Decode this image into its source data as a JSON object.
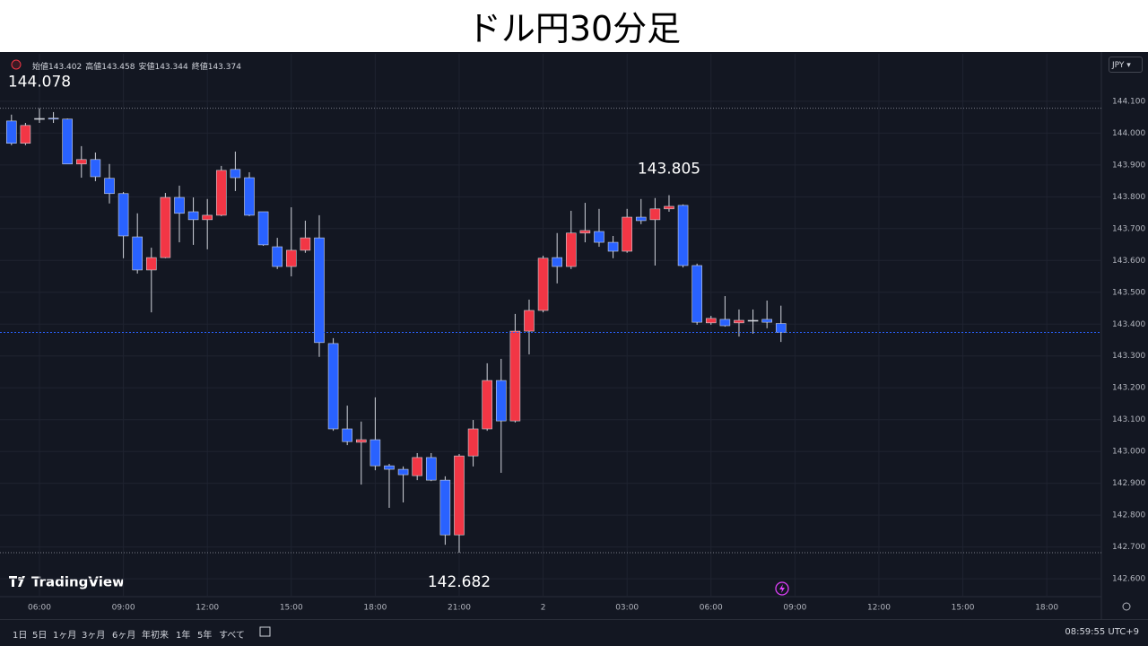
{
  "chart_data": {
    "type": "candlestick",
    "title": "ドル円30分足",
    "x": [
      5,
      5.5,
      6,
      6.5,
      7,
      7.5,
      8,
      8.5,
      9,
      9.5,
      10,
      10.5,
      11,
      11.5,
      12,
      12.5,
      13,
      13.5,
      14,
      14.5,
      15,
      15.5,
      16,
      16.5,
      17,
      17.5,
      18,
      18.5,
      19,
      19.5,
      20,
      20.5,
      21,
      21.5,
      22,
      22.5,
      23,
      23.5,
      24,
      24.5,
      25,
      25.5,
      26,
      26.5,
      27,
      27.5,
      28,
      28.5,
      29,
      29.5,
      30,
      30.5,
      31,
      31.5,
      32,
      32.5
    ],
    "open": [
      144.038,
      143.968,
      144.046,
      144.047,
      144.044,
      143.903,
      143.917,
      143.858,
      143.81,
      143.674,
      143.57,
      143.609,
      143.798,
      143.753,
      143.728,
      143.742,
      143.886,
      143.86,
      143.753,
      143.643,
      143.581,
      143.632,
      143.671,
      143.339,
      143.071,
      143.029,
      143.037,
      142.955,
      142.944,
      142.924,
      142.981,
      142.91,
      142.738,
      142.986,
      143.071,
      143.223,
      143.096,
      143.378,
      143.443,
      143.609,
      143.581,
      143.686,
      143.691,
      143.657,
      143.629,
      143.736,
      143.728,
      143.762,
      143.773,
      143.584,
      143.404,
      143.415,
      143.404,
      143.412,
      143.415,
      143.402
    ],
    "high": [
      144.058,
      144.032,
      144.078,
      144.066,
      144.046,
      143.959,
      143.939,
      143.903,
      143.815,
      143.748,
      143.64,
      143.812,
      143.835,
      143.798,
      143.793,
      143.897,
      143.942,
      143.877,
      143.753,
      143.671,
      143.767,
      143.725,
      143.742,
      143.356,
      143.144,
      143.094,
      143.17,
      142.961,
      142.953,
      142.995,
      142.995,
      142.922,
      142.992,
      143.099,
      143.277,
      143.291,
      143.432,
      143.477,
      143.615,
      143.686,
      143.756,
      143.781,
      143.762,
      143.677,
      143.762,
      143.793,
      143.796,
      143.805,
      143.776,
      143.59,
      143.426,
      143.488,
      143.446,
      143.446,
      143.474,
      143.458
    ],
    "low": [
      143.962,
      143.962,
      144.032,
      144.032,
      143.903,
      143.86,
      143.849,
      143.779,
      143.607,
      143.559,
      143.437,
      143.607,
      143.657,
      143.649,
      143.635,
      143.739,
      143.818,
      143.739,
      143.646,
      143.573,
      143.55,
      143.624,
      143.297,
      143.065,
      143.02,
      142.896,
      142.941,
      142.823,
      142.84,
      142.91,
      142.907,
      142.707,
      142.682,
      142.953,
      143.065,
      142.933,
      143.091,
      143.305,
      143.437,
      143.528,
      143.573,
      143.657,
      143.643,
      143.607,
      143.624,
      143.714,
      143.584,
      143.753,
      143.578,
      143.398,
      143.398,
      143.392,
      143.361,
      143.37,
      143.387,
      143.344
    ],
    "close": [
      143.968,
      144.024,
      144.046,
      144.044,
      143.903,
      143.917,
      143.863,
      143.81,
      143.677,
      143.57,
      143.609,
      143.798,
      143.748,
      143.728,
      143.742,
      143.883,
      143.86,
      143.742,
      143.649,
      143.581,
      143.632,
      143.671,
      143.342,
      143.071,
      143.031,
      143.037,
      142.955,
      142.944,
      142.927,
      142.981,
      142.91,
      142.738,
      142.986,
      143.071,
      143.223,
      143.096,
      143.378,
      143.443,
      143.607,
      143.581,
      143.686,
      143.694,
      143.657,
      143.629,
      143.736,
      143.725,
      143.762,
      143.77,
      143.584,
      143.406,
      143.418,
      143.395,
      143.412,
      143.412,
      143.406,
      143.374
    ],
    "up_color": "#f23645",
    "down_color": "#2962ff",
    "neutral_color": "#d1d4dc",
    "xlim": [
      4.59,
      43.95
    ],
    "ylim": [
      144.249,
      142.544
    ],
    "xticks": [
      {
        "value": 6,
        "label": "06:00"
      },
      {
        "value": 9,
        "label": "09:00"
      },
      {
        "value": 12,
        "label": "12:00"
      },
      {
        "value": 15,
        "label": "15:00"
      },
      {
        "value": 18,
        "label": "18:00"
      },
      {
        "value": 21,
        "label": "21:00"
      },
      {
        "value": 24,
        "label": "2"
      },
      {
        "value": 27,
        "label": "03:00"
      },
      {
        "value": 30,
        "label": "06:00"
      },
      {
        "value": 33,
        "label": "09:00"
      },
      {
        "value": 36,
        "label": "12:00"
      },
      {
        "value": 39,
        "label": "15:00"
      },
      {
        "value": 42,
        "label": "18:00"
      }
    ],
    "yticks": [
      {
        "value": 142.6,
        "label": "142.600"
      },
      {
        "value": 142.7,
        "label": "142.700"
      },
      {
        "value": 142.8,
        "label": "142.800"
      },
      {
        "value": 142.9,
        "label": "142.900"
      },
      {
        "value": 143.0,
        "label": "143.000"
      },
      {
        "value": 143.1,
        "label": "143.100"
      },
      {
        "value": 143.2,
        "label": "143.200"
      },
      {
        "value": 143.3,
        "label": "143.300"
      },
      {
        "value": 143.4,
        "label": "143.400"
      },
      {
        "value": 143.5,
        "label": "143.500"
      },
      {
        "value": 143.6,
        "label": "143.600"
      },
      {
        "value": 143.7,
        "label": "143.700"
      },
      {
        "value": 143.8,
        "label": "143.800"
      },
      {
        "value": 143.9,
        "label": "143.900"
      },
      {
        "value": 144.0,
        "label": "144.000"
      },
      {
        "value": 144.1,
        "label": "144.100"
      }
    ],
    "grid": true,
    "annotations": [
      {
        "label": "144.078",
        "value": 144.078,
        "x": 6,
        "position": "above",
        "line": true
      },
      {
        "label": "143.805",
        "value": 143.805,
        "x": 28.5,
        "position": "above",
        "line": false
      },
      {
        "label": "142.682",
        "value": 142.682,
        "x": 21,
        "position": "below",
        "line": true
      }
    ],
    "last_price_line": true
  },
  "ohlc_header": [
    {
      "name": "始値",
      "value": "143.402"
    },
    {
      "name": "高値",
      "value": "143.458"
    },
    {
      "name": "安値",
      "value": "143.344"
    },
    {
      "name": "終値",
      "value": "143.374"
    }
  ],
  "currency": "JPY",
  "brand": "TradingView",
  "range_buttons": [
    "1日",
    "5日",
    "1ヶ月",
    "3ヶ月",
    "6ヶ月",
    "年初来",
    "1年",
    "5年",
    "すべて"
  ],
  "clock": "08:59:55 UTC+9"
}
